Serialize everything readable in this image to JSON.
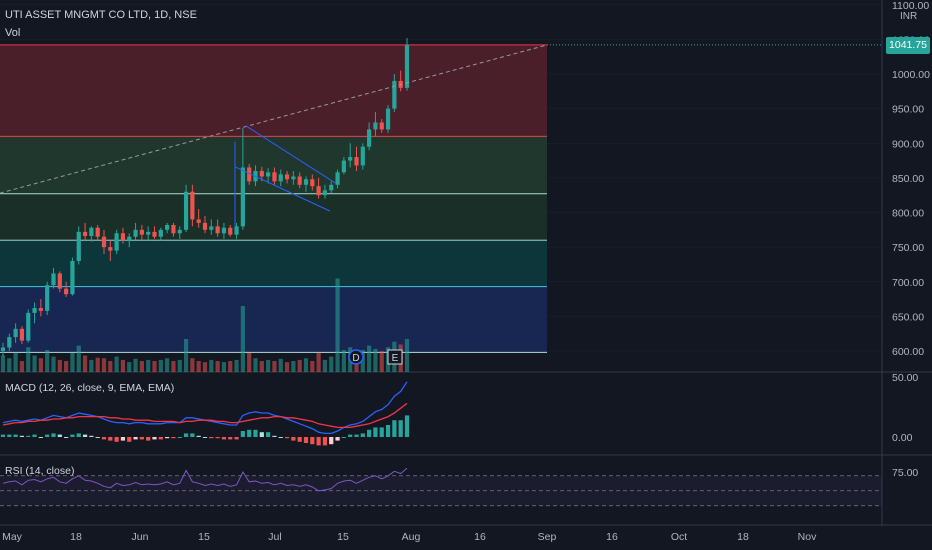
{
  "header": {
    "title": "UTI ASSET MNGMT CO LTD, 1D, NSE",
    "volume_label": "Vol"
  },
  "currency": "INR",
  "last_price": "1041.75",
  "colors": {
    "up": "#26a69a",
    "down": "#ef5350",
    "macd_line": "#2962ff",
    "signal_line": "#f23645",
    "rsi_line": "#7e57c2",
    "grid": "#2a2e39"
  },
  "markers": [
    {
      "label": "D",
      "icon": "dividend-icon"
    },
    {
      "label": "E",
      "icon": "earnings-icon"
    }
  ],
  "indicators": {
    "macd_label": "MACD (12, 26, close, 9, EMA, EMA)",
    "rsi_label": "RSI (14, close)"
  },
  "price_axis": {
    "labels": [
      "1100.00",
      "1050.00",
      "1000.00",
      "950.00",
      "900.00",
      "850.00",
      "800.00",
      "750.00",
      "700.00",
      "650.00",
      "600.00"
    ],
    "values": [
      1100,
      1050,
      1000,
      950,
      900,
      850,
      800,
      750,
      700,
      650,
      600
    ]
  },
  "macd_axis": {
    "labels": [
      "50.00",
      "0.00"
    ],
    "values": [
      50,
      0
    ]
  },
  "rsi_axis": {
    "labels": [
      "75.00"
    ],
    "values": [
      75
    ]
  },
  "time_axis": [
    "May",
    "18",
    "Jun",
    "15",
    "Jul",
    "15",
    "Aug",
    "16",
    "Sep",
    "16",
    "Oct",
    "18",
    "Nov"
  ],
  "zones": [
    {
      "top": 1042,
      "bottom": 910,
      "color": "rgba(242,54,69,0.25)",
      "line": "#f23645"
    },
    {
      "top": 910,
      "bottom": 827,
      "color": "rgba(76,175,80,0.22)",
      "line": "#b2dfdb"
    },
    {
      "top": 827,
      "bottom": 760,
      "color": "rgba(76,175,80,0.16)",
      "line": "#b2dfdb"
    },
    {
      "top": 760,
      "bottom": 693,
      "color": "rgba(0,137,123,0.28)",
      "line": "#4dd0e1"
    },
    {
      "top": 693,
      "bottom": 598,
      "color": "rgba(41,98,255,0.22)",
      "line": "#b2dfdb"
    }
  ],
  "chart_data": {
    "type": "candlestick",
    "title": "UTI ASSET MNGMT CO LTD, 1D, NSE",
    "ylim": [
      580,
      1120
    ],
    "candles": [
      [
        600,
        612,
        592,
        605
      ],
      [
        605,
        625,
        600,
        620
      ],
      [
        620,
        640,
        612,
        632
      ],
      [
        632,
        636,
        610,
        615
      ],
      [
        615,
        660,
        612,
        655
      ],
      [
        655,
        670,
        640,
        662
      ],
      [
        662,
        675,
        650,
        658
      ],
      [
        658,
        700,
        652,
        695
      ],
      [
        695,
        720,
        690,
        712
      ],
      [
        712,
        715,
        685,
        690
      ],
      [
        690,
        700,
        678,
        682
      ],
      [
        682,
        735,
        680,
        730
      ],
      [
        730,
        780,
        725,
        772
      ],
      [
        772,
        785,
        760,
        766
      ],
      [
        766,
        780,
        758,
        778
      ],
      [
        778,
        782,
        760,
        765
      ],
      [
        765,
        775,
        740,
        750
      ],
      [
        750,
        760,
        730,
        745
      ],
      [
        745,
        775,
        740,
        770
      ],
      [
        770,
        778,
        755,
        760
      ],
      [
        760,
        770,
        750,
        765
      ],
      [
        765,
        785,
        760,
        775
      ],
      [
        775,
        782,
        760,
        768
      ],
      [
        768,
        780,
        760,
        772
      ],
      [
        772,
        780,
        762,
        765
      ],
      [
        765,
        778,
        760,
        775
      ],
      [
        775,
        785,
        770,
        782
      ],
      [
        782,
        785,
        765,
        770
      ],
      [
        770,
        780,
        762,
        775
      ],
      [
        775,
        840,
        772,
        830
      ],
      [
        830,
        840,
        780,
        790
      ],
      [
        790,
        805,
        778,
        785
      ],
      [
        785,
        795,
        770,
        775
      ],
      [
        775,
        790,
        768,
        780
      ],
      [
        780,
        790,
        765,
        770
      ],
      [
        770,
        785,
        762,
        778
      ],
      [
        778,
        782,
        765,
        768
      ],
      [
        768,
        785,
        762,
        780
      ],
      [
        780,
        922,
        775,
        865
      ],
      [
        865,
        870,
        840,
        845
      ],
      [
        845,
        868,
        838,
        860
      ],
      [
        860,
        866,
        845,
        852
      ],
      [
        852,
        864,
        842,
        858
      ],
      [
        858,
        865,
        840,
        845
      ],
      [
        845,
        862,
        838,
        855
      ],
      [
        855,
        860,
        842,
        848
      ],
      [
        848,
        860,
        840,
        852
      ],
      [
        852,
        858,
        835,
        840
      ],
      [
        840,
        852,
        830,
        848
      ],
      [
        848,
        855,
        832,
        838
      ],
      [
        838,
        850,
        820,
        825
      ],
      [
        825,
        840,
        820,
        832
      ],
      [
        832,
        845,
        828,
        840
      ],
      [
        840,
        862,
        835,
        858
      ],
      [
        858,
        880,
        855,
        875
      ],
      [
        875,
        900,
        865,
        880
      ],
      [
        880,
        895,
        860,
        868
      ],
      [
        868,
        900,
        862,
        895
      ],
      [
        895,
        930,
        890,
        920
      ],
      [
        920,
        945,
        910,
        930
      ],
      [
        930,
        935,
        915,
        920
      ],
      [
        920,
        955,
        915,
        950
      ],
      [
        950,
        1000,
        945,
        990
      ],
      [
        990,
        1005,
        975,
        980
      ],
      [
        980,
        1052,
        976,
        1041.75
      ]
    ],
    "volume": [
      30,
      25,
      35,
      20,
      45,
      30,
      25,
      40,
      28,
      22,
      20,
      35,
      48,
      30,
      22,
      26,
      25,
      20,
      28,
      22,
      18,
      24,
      20,
      22,
      20,
      22,
      25,
      20,
      22,
      60,
      25,
      20,
      18,
      22,
      20,
      18,
      20,
      22,
      120,
      35,
      25,
      20,
      22,
      20,
      24,
      18,
      20,
      22,
      25,
      20,
      35,
      22,
      28,
      170,
      40,
      45,
      35,
      40,
      48,
      42,
      38,
      45,
      55,
      50,
      60
    ],
    "macd": [
      12,
      13,
      14,
      13,
      14,
      15,
      14,
      16,
      18,
      17,
      16,
      18,
      20,
      19,
      18,
      17,
      15,
      13,
      12,
      12,
      11,
      12,
      12,
      11,
      11,
      11,
      12,
      12,
      12,
      16,
      16,
      15,
      14,
      13,
      12,
      11,
      10,
      10,
      18,
      20,
      21,
      20,
      20,
      18,
      17,
      15,
      13,
      11,
      9,
      7,
      4,
      3,
      3,
      5,
      8,
      10,
      11,
      13,
      17,
      21,
      23,
      27,
      34,
      38,
      46
    ],
    "signal": [
      10,
      11,
      12,
      12,
      13,
      13,
      14,
      14,
      15,
      15,
      16,
      16,
      17,
      17,
      17,
      17,
      17,
      16,
      16,
      15,
      15,
      14,
      14,
      14,
      13,
      13,
      13,
      13,
      12,
      13,
      13,
      14,
      14,
      14,
      13,
      13,
      12,
      12,
      13,
      14,
      15,
      16,
      16,
      17,
      17,
      16,
      16,
      15,
      14,
      13,
      11,
      10,
      9,
      8,
      8,
      8,
      9,
      10,
      11,
      13,
      15,
      17,
      20,
      24,
      28
    ],
    "hist": [
      2,
      2,
      2,
      1,
      1,
      2,
      0,
      2,
      3,
      2,
      0,
      2,
      3,
      2,
      1,
      0,
      -2,
      -3,
      -4,
      -3,
      -4,
      -2,
      -2,
      -3,
      -2,
      -2,
      -1,
      -1,
      0,
      3,
      3,
      1,
      0,
      -1,
      -1,
      -2,
      -2,
      -2,
      5,
      6,
      6,
      4,
      4,
      1,
      0,
      -1,
      -3,
      -4,
      -5,
      -6,
      -7,
      -7,
      -6,
      -3,
      0,
      2,
      2,
      3,
      6,
      8,
      8,
      10,
      14,
      14,
      18
    ],
    "rsi": [
      60,
      62,
      63,
      58,
      64,
      65,
      62,
      66,
      68,
      62,
      60,
      66,
      70,
      64,
      63,
      60,
      56,
      54,
      60,
      57,
      58,
      61,
      58,
      59,
      58,
      59,
      62,
      58,
      60,
      77,
      62,
      60,
      57,
      59,
      57,
      59,
      56,
      58,
      75,
      62,
      63,
      60,
      61,
      58,
      60,
      57,
      58,
      56,
      58,
      55,
      50,
      51,
      53,
      60,
      63,
      64,
      60,
      64,
      68,
      70,
      66,
      70,
      76,
      73,
      80
    ]
  }
}
